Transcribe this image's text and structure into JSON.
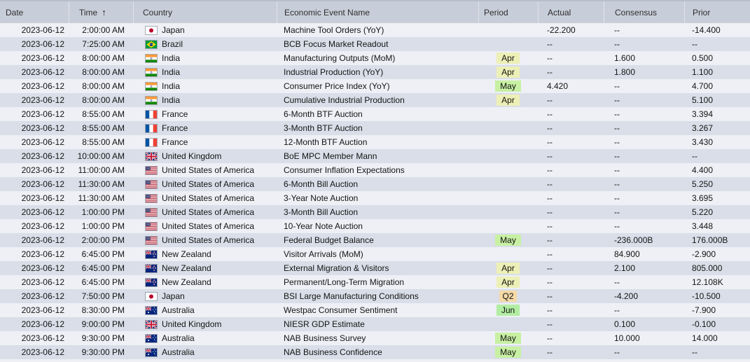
{
  "table": {
    "columns": [
      {
        "key": "date",
        "label": "Date"
      },
      {
        "key": "time",
        "label": "Time",
        "sort": "ascending",
        "sort_icon": "↑"
      },
      {
        "key": "country",
        "label": "Country"
      },
      {
        "key": "event",
        "label": "Economic Event Name"
      },
      {
        "key": "period",
        "label": "Period"
      },
      {
        "key": "actual",
        "label": "Actual"
      },
      {
        "key": "consensus",
        "label": "Consensus"
      },
      {
        "key": "prior",
        "label": "Prior"
      }
    ],
    "colors": {
      "header_bg": "#c8ced9",
      "row_light": "#eef0f5",
      "row_dark": "#d9dee8",
      "badge_apr": "#edf0b6",
      "badge_may": "#c7f0a3",
      "badge_jun": "#b2eda3",
      "badge_q2": "#f5d9a6"
    },
    "rows": [
      {
        "date": "2023-06-12",
        "time": "2:00:00 AM",
        "flag": "flag-japan",
        "country": "Japan",
        "event": "Machine Tool Orders (YoY)",
        "period": "",
        "actual": "-22.200",
        "consensus": "--",
        "prior": "-14.400"
      },
      {
        "date": "2023-06-12",
        "time": "7:25:00 AM",
        "flag": "flag-brazil",
        "country": "Brazil",
        "event": "BCB Focus Market Readout",
        "period": "",
        "actual": "--",
        "consensus": "--",
        "prior": "--"
      },
      {
        "date": "2023-06-12",
        "time": "8:00:00 AM",
        "flag": "flag-india",
        "country": "India",
        "event": "Manufacturing Outputs (MoM)",
        "period": "Apr",
        "actual": "--",
        "consensus": "1.600",
        "prior": "0.500"
      },
      {
        "date": "2023-06-12",
        "time": "8:00:00 AM",
        "flag": "flag-india",
        "country": "India",
        "event": "Industrial Production (YoY)",
        "period": "Apr",
        "actual": "--",
        "consensus": "1.800",
        "prior": "1.100"
      },
      {
        "date": "2023-06-12",
        "time": "8:00:00 AM",
        "flag": "flag-india",
        "country": "India",
        "event": "Consumer Price Index (YoY)",
        "period": "May",
        "actual": "4.420",
        "consensus": "--",
        "prior": "4.700"
      },
      {
        "date": "2023-06-12",
        "time": "8:00:00 AM",
        "flag": "flag-india",
        "country": "India",
        "event": "Cumulative Industrial Production",
        "period": "Apr",
        "actual": "--",
        "consensus": "--",
        "prior": "5.100"
      },
      {
        "date": "2023-06-12",
        "time": "8:55:00 AM",
        "flag": "flag-france",
        "country": "France",
        "event": "6-Month BTF Auction",
        "period": "",
        "actual": "--",
        "consensus": "--",
        "prior": "3.394"
      },
      {
        "date": "2023-06-12",
        "time": "8:55:00 AM",
        "flag": "flag-france",
        "country": "France",
        "event": "3-Month BTF Auction",
        "period": "",
        "actual": "--",
        "consensus": "--",
        "prior": "3.267"
      },
      {
        "date": "2023-06-12",
        "time": "8:55:00 AM",
        "flag": "flag-france",
        "country": "France",
        "event": "12-Month BTF Auction",
        "period": "",
        "actual": "--",
        "consensus": "--",
        "prior": "3.430"
      },
      {
        "date": "2023-06-12",
        "time": "10:00:00 AM",
        "flag": "flag-united-kingdom",
        "country": "United Kingdom",
        "event": "BoE MPC Member Mann",
        "period": "",
        "actual": "--",
        "consensus": "--",
        "prior": "--"
      },
      {
        "date": "2023-06-12",
        "time": "11:00:00 AM",
        "flag": "flag-usa",
        "country": "United States of America",
        "event": "Consumer Inflation Expectations",
        "period": "",
        "actual": "--",
        "consensus": "--",
        "prior": "4.400"
      },
      {
        "date": "2023-06-12",
        "time": "11:30:00 AM",
        "flag": "flag-usa",
        "country": "United States of America",
        "event": "6-Month Bill Auction",
        "period": "",
        "actual": "--",
        "consensus": "--",
        "prior": "5.250"
      },
      {
        "date": "2023-06-12",
        "time": "11:30:00 AM",
        "flag": "flag-usa",
        "country": "United States of America",
        "event": "3-Year Note Auction",
        "period": "",
        "actual": "--",
        "consensus": "--",
        "prior": "3.695"
      },
      {
        "date": "2023-06-12",
        "time": "1:00:00 PM",
        "flag": "flag-usa",
        "country": "United States of America",
        "event": "3-Month Bill Auction",
        "period": "",
        "actual": "--",
        "consensus": "--",
        "prior": "5.220"
      },
      {
        "date": "2023-06-12",
        "time": "1:00:00 PM",
        "flag": "flag-usa",
        "country": "United States of America",
        "event": "10-Year Note Auction",
        "period": "",
        "actual": "--",
        "consensus": "--",
        "prior": "3.448"
      },
      {
        "date": "2023-06-12",
        "time": "2:00:00 PM",
        "flag": "flag-usa",
        "country": "United States of America",
        "event": "Federal Budget Balance",
        "period": "May",
        "actual": "--",
        "consensus": "-236.000B",
        "prior": "176.000B"
      },
      {
        "date": "2023-06-12",
        "time": "6:45:00 PM",
        "flag": "flag-new-zealand",
        "country": "New Zealand",
        "event": "Visitor Arrivals (MoM)",
        "period": "",
        "actual": "--",
        "consensus": "84.900",
        "prior": "-2.900"
      },
      {
        "date": "2023-06-12",
        "time": "6:45:00 PM",
        "flag": "flag-new-zealand",
        "country": "New Zealand",
        "event": "External Migration & Visitors",
        "period": "Apr",
        "actual": "--",
        "consensus": "2.100",
        "prior": "805.000"
      },
      {
        "date": "2023-06-12",
        "time": "6:45:00 PM",
        "flag": "flag-new-zealand",
        "country": "New Zealand",
        "event": "Permanent/Long-Term Migration",
        "period": "Apr",
        "actual": "--",
        "consensus": "--",
        "prior": "12.108K"
      },
      {
        "date": "2023-06-12",
        "time": "7:50:00 PM",
        "flag": "flag-japan",
        "country": "Japan",
        "event": "BSI Large Manufacturing Conditions",
        "period": "Q2",
        "actual": "--",
        "consensus": "-4.200",
        "prior": "-10.500"
      },
      {
        "date": "2023-06-12",
        "time": "8:30:00 PM",
        "flag": "flag-australia",
        "country": "Australia",
        "event": "Westpac Consumer Sentiment",
        "period": "Jun",
        "actual": "--",
        "consensus": "--",
        "prior": "-7.900"
      },
      {
        "date": "2023-06-12",
        "time": "9:00:00 PM",
        "flag": "flag-united-kingdom",
        "country": "United Kingdom",
        "event": "NIESR GDP Estimate",
        "period": "",
        "actual": "--",
        "consensus": "0.100",
        "prior": "-0.100"
      },
      {
        "date": "2023-06-12",
        "time": "9:30:00 PM",
        "flag": "flag-australia",
        "country": "Australia",
        "event": "NAB Business Survey",
        "period": "May",
        "actual": "--",
        "consensus": "10.000",
        "prior": "14.000"
      },
      {
        "date": "2023-06-12",
        "time": "9:30:00 PM",
        "flag": "flag-australia",
        "country": "Australia",
        "event": "NAB Business Confidence",
        "period": "May",
        "actual": "--",
        "consensus": "--",
        "prior": "--"
      }
    ]
  }
}
